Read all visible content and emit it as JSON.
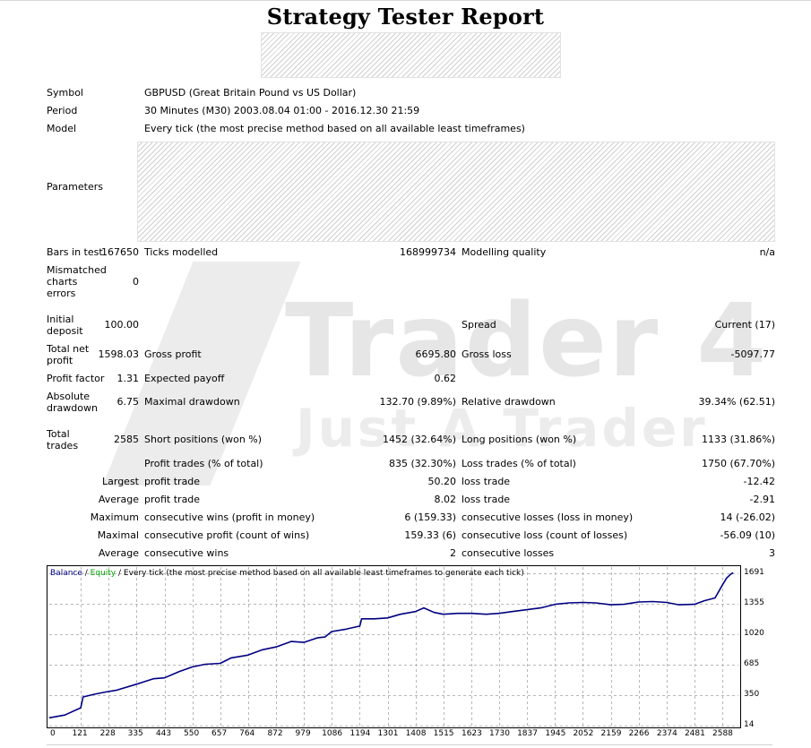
{
  "report": {
    "title": "Strategy Tester Report"
  },
  "summary": {
    "symbol_label": "Symbol",
    "symbol_value": "GBPUSD (Great Britain Pound vs US Dollar)",
    "period_label": "Period",
    "period_value": "30 Minutes (M30) 2003.08.04 01:00 - 2016.12.30 21:59",
    "model_label": "Model",
    "model_value": "Every tick (the most precise method based on all available least timeframes)",
    "parameters_label": "Parameters"
  },
  "stats": {
    "bars_label": "Bars in test",
    "bars_value": "167650",
    "ticks_label": "Ticks modelled",
    "ticks_value": "168999734",
    "modelling_label": "Modelling quality",
    "modelling_value": "n/a",
    "mismatch_label": "Mismatched charts errors",
    "mismatch_value": "0",
    "initial_deposit_label": "Initial deposit",
    "initial_deposit_value": "100.00",
    "spread_label": "Spread",
    "spread_value": "Current (17)",
    "net_profit_label": "Total net profit",
    "net_profit_value": "1598.03",
    "gross_profit_label": "Gross profit",
    "gross_profit_value": "6695.80",
    "gross_loss_label": "Gross loss",
    "gross_loss_value": "-5097.77",
    "profit_factor_label": "Profit factor",
    "profit_factor_value": "1.31",
    "expected_payoff_label": "Expected payoff",
    "expected_payoff_value": "0.62",
    "abs_drawdown_label": "Absolute drawdown",
    "abs_drawdown_value": "6.75",
    "max_drawdown_label": "Maximal drawdown",
    "max_drawdown_value": "132.70 (9.89%)",
    "rel_drawdown_label": "Relative drawdown",
    "rel_drawdown_value": "39.34% (62.51)",
    "total_trades_label": "Total trades",
    "total_trades_value": "2585",
    "short_label": "Short positions (won %)",
    "short_value": "1452 (32.64%)",
    "long_label": "Long positions (won %)",
    "long_value": "1133 (31.86%)",
    "profit_trades_label": "Profit trades (% of total)",
    "profit_trades_value": "835 (32.30%)",
    "loss_trades_label": "Loss trades (% of total)",
    "loss_trades_value": "1750 (67.70%)",
    "largest_label": "Largest",
    "largest_profit_label": "profit trade",
    "largest_profit_value": "50.20",
    "largest_loss_label": "loss trade",
    "largest_loss_value": "-12.42",
    "average_label": "Average",
    "average_profit_label": "profit trade",
    "average_profit_value": "8.02",
    "average_loss_label": "loss trade",
    "average_loss_value": "-2.91",
    "maximum_label": "Maximum",
    "max_cons_wins_label": "consecutive wins (profit in money)",
    "max_cons_wins_value": "6 (159.33)",
    "max_cons_losses_label": "consecutive losses (loss in money)",
    "max_cons_losses_value": "14 (-26.02)",
    "maximal_label": "Maximal",
    "maximal_cons_profit_label": "consecutive profit (count of wins)",
    "maximal_cons_profit_value": "159.33 (6)",
    "maximal_cons_loss_label": "consecutive loss (count of losses)",
    "maximal_cons_loss_value": "-56.09 (10)",
    "average2_label": "Average",
    "avg_cons_wins_label": "consecutive wins",
    "avg_cons_wins_value": "2",
    "avg_cons_losses_label": "consecutive losses",
    "avg_cons_losses_value": "3"
  },
  "watermark": {
    "line1": "Trader 4",
    "line2": "Just A Trader"
  },
  "chart_legend": {
    "balance": "Balance",
    "sep1": " / ",
    "equity": "Equity",
    "info": " / Every tick (the most precise method based on all available least timeframes to generate each tick)"
  },
  "colors": {
    "balance_line": "#000080",
    "equity_line": "#00a000",
    "grid": "#b8b8b8"
  },
  "chart_data": {
    "type": "line",
    "title": "",
    "xlabel": "",
    "ylabel": "",
    "x_ticks": [
      0,
      121,
      228,
      335,
      443,
      550,
      657,
      764,
      872,
      979,
      1086,
      1194,
      1301,
      1408,
      1515,
      1623,
      1730,
      1837,
      1945,
      2052,
      2159,
      2266,
      2374,
      2481,
      2588
    ],
    "y_ticks": [
      14,
      350,
      685,
      1020,
      1355,
      1691
    ],
    "xlim": [
      0,
      2650
    ],
    "ylim": [
      14,
      1760
    ],
    "grid": true,
    "series": [
      {
        "name": "Balance",
        "x": [
          0,
          60,
          121,
          130,
          175,
          228,
          260,
          335,
          400,
          443,
          500,
          550,
          600,
          657,
          700,
          764,
          820,
          872,
          930,
          979,
          1030,
          1060,
          1086,
          1140,
          1194,
          1201,
          1250,
          1301,
          1350,
          1408,
          1440,
          1480,
          1515,
          1570,
          1623,
          1680,
          1730,
          1780,
          1837,
          1890,
          1945,
          2000,
          2052,
          2100,
          2159,
          2210,
          2266,
          2320,
          2374,
          2420,
          2481,
          2520,
          2560,
          2588,
          2605,
          2620,
          2630
        ],
        "y": [
          100,
          130,
          210,
          330,
          360,
          390,
          405,
          470,
          530,
          540,
          610,
          660,
          690,
          700,
          760,
          790,
          850,
          880,
          940,
          930,
          980,
          990,
          1050,
          1075,
          1110,
          1190,
          1190,
          1200,
          1240,
          1270,
          1310,
          1260,
          1240,
          1250,
          1250,
          1240,
          1250,
          1270,
          1290,
          1310,
          1350,
          1365,
          1370,
          1365,
          1345,
          1350,
          1375,
          1380,
          1370,
          1345,
          1350,
          1390,
          1420,
          1560,
          1640,
          1680,
          1698
        ]
      }
    ]
  }
}
